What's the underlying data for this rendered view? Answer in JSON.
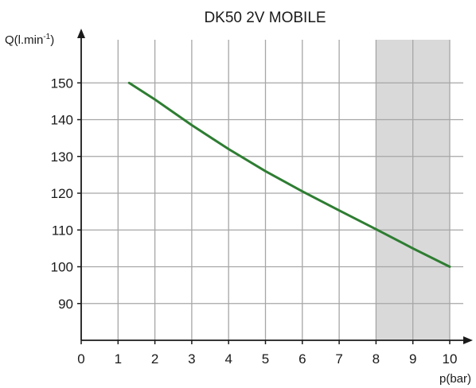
{
  "chart_data": {
    "type": "line",
    "title": "DK50 2V MOBILE",
    "ylabel": "Q(l.min",
    "ylabel_sup": "-1",
    "ylabel_close": ")",
    "xlabel": "p(bar)",
    "xlim": [
      0,
      10
    ],
    "ylim": [
      80,
      160
    ],
    "x_ticks": [
      0,
      1,
      2,
      3,
      4,
      5,
      6,
      7,
      8,
      9,
      10
    ],
    "y_ticks": [
      90,
      100,
      110,
      120,
      130,
      140,
      150
    ],
    "grid": true,
    "shaded_region": {
      "x": [
        8,
        10
      ],
      "color": "#d9d9d9"
    },
    "series": [
      {
        "color": "#2e7d32",
        "x": [
          1.3,
          2,
          3,
          4,
          5,
          6,
          7,
          8,
          9,
          10
        ],
        "y": [
          150,
          145.5,
          138.5,
          132,
          126,
          120.5,
          115.3,
          110.2,
          105,
          100
        ]
      }
    ]
  },
  "colors": {
    "grid": "#a6a6a6",
    "axis": "#1a1a1a",
    "line": "#2e7d32",
    "shade": "#d9d9d9"
  }
}
